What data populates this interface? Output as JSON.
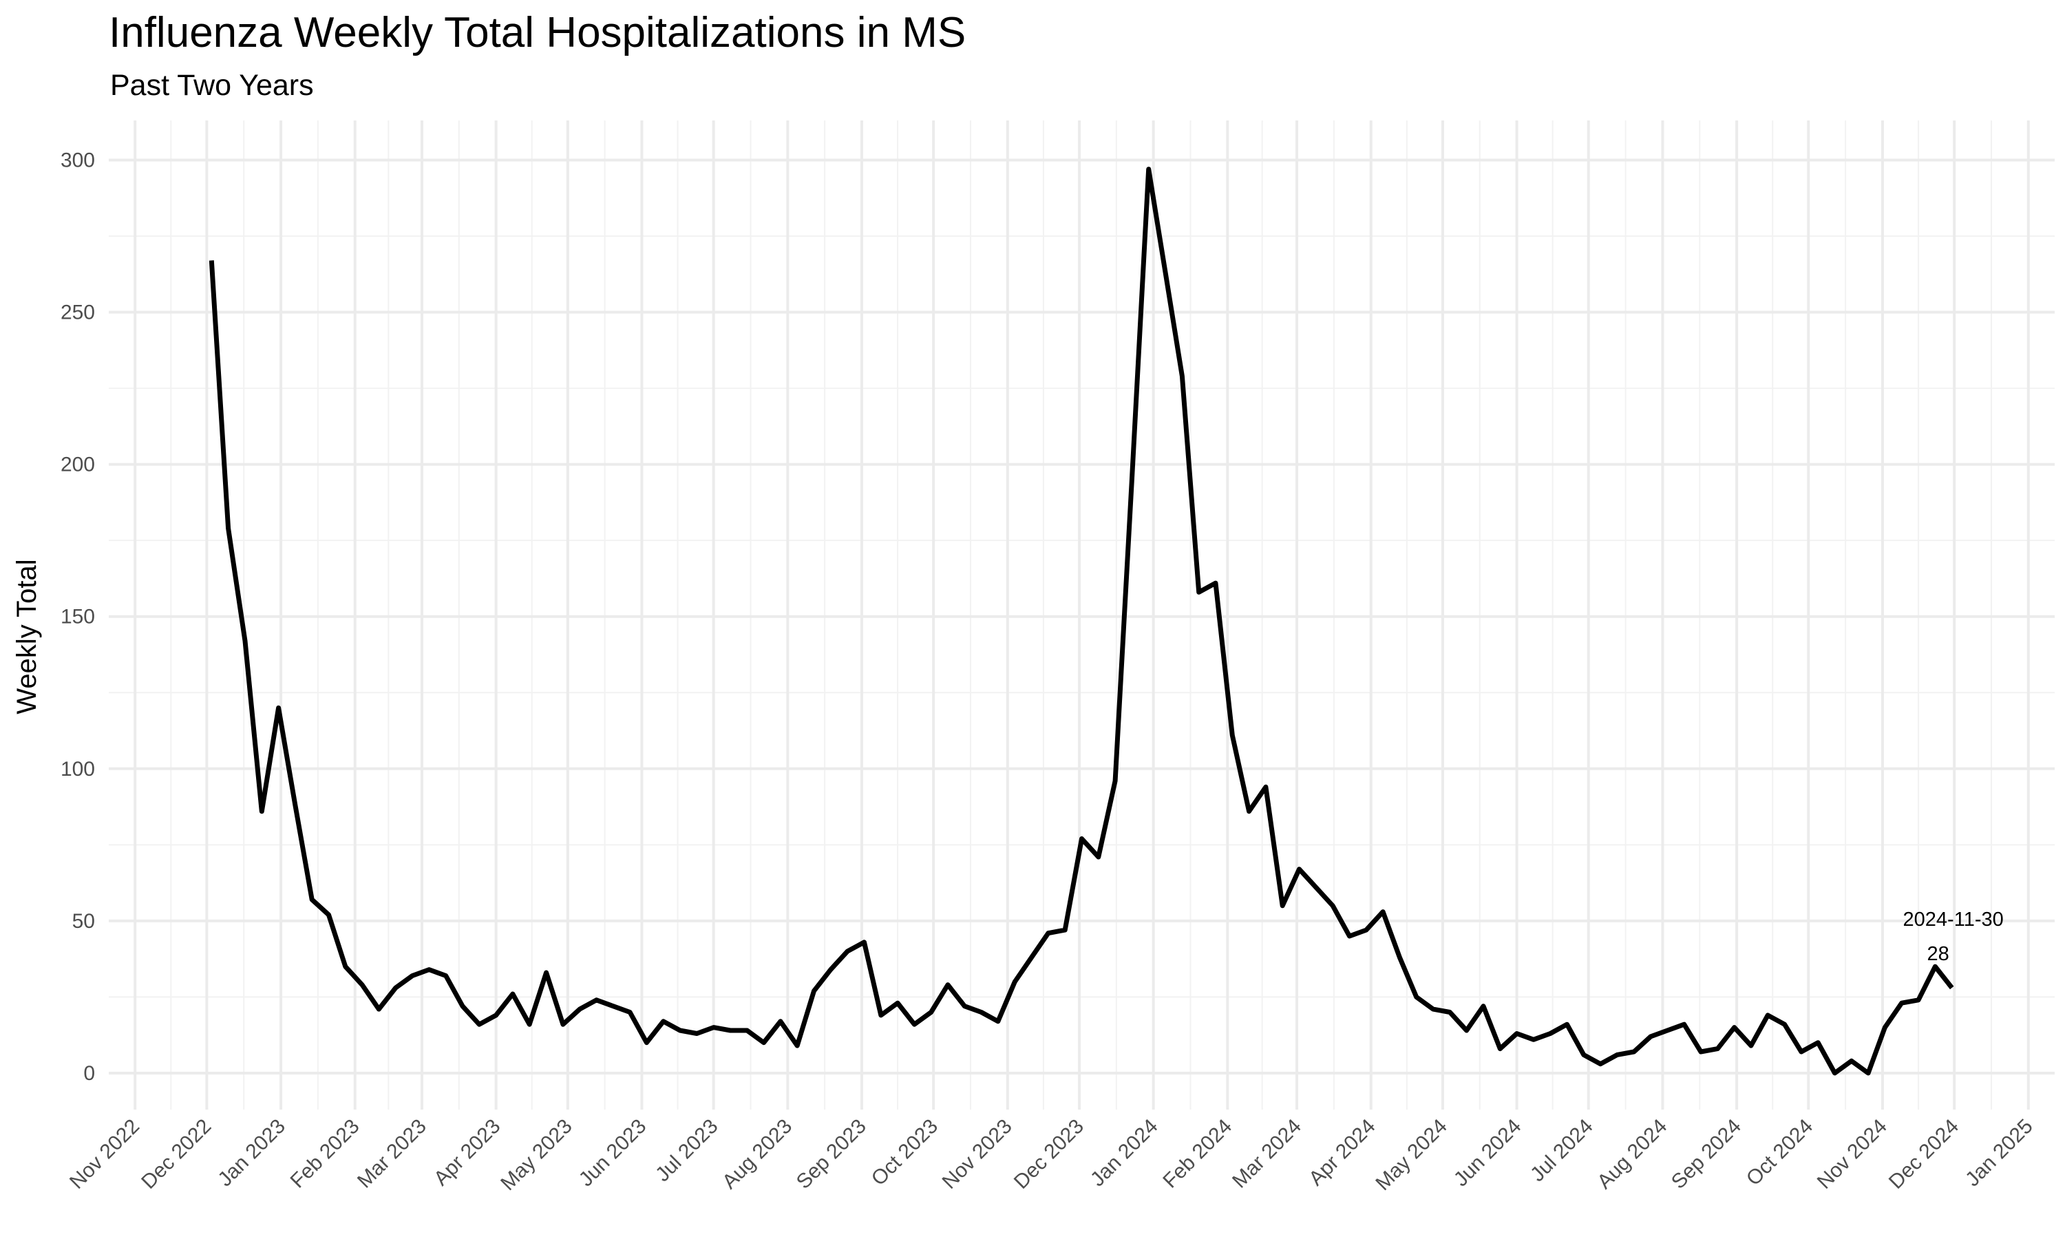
{
  "chart_data": {
    "type": "line",
    "title": "Influenza Weekly Total Hospitalizations in MS",
    "subtitle": "Past Two Years",
    "xlabel": "",
    "ylabel": "Weekly Total",
    "grid": true,
    "ylim": [
      -12,
      313
    ],
    "y_ticks": [
      0,
      50,
      100,
      150,
      200,
      250,
      300
    ],
    "y_tick_labels": [
      "0",
      "50",
      "100",
      "150",
      "200",
      "250",
      "300"
    ],
    "xlim": [
      "2022-10-21",
      "2025-01-12"
    ],
    "x_ticks": [
      "2022-11-01",
      "2022-12-01",
      "2023-01-01",
      "2023-02-01",
      "2023-03-01",
      "2023-04-01",
      "2023-05-01",
      "2023-06-01",
      "2023-07-01",
      "2023-08-01",
      "2023-09-01",
      "2023-10-01",
      "2023-11-01",
      "2023-12-01",
      "2024-01-01",
      "2024-02-01",
      "2024-03-01",
      "2024-04-01",
      "2024-05-01",
      "2024-06-01",
      "2024-07-01",
      "2024-08-01",
      "2024-09-01",
      "2024-10-01",
      "2024-11-01",
      "2024-12-01",
      "2025-01-01"
    ],
    "x_tick_labels": [
      "Nov 2022",
      "Dec 2022",
      "Jan 2023",
      "Feb 2023",
      "Mar 2023",
      "Apr 2023",
      "May 2023",
      "Jun 2023",
      "Jul 2023",
      "Aug 2023",
      "Sep 2023",
      "Oct 2023",
      "Nov 2023",
      "Dec 2023",
      "Jan 2024",
      "Feb 2024",
      "Mar 2024",
      "Apr 2024",
      "May 2024",
      "Jun 2024",
      "Jul 2024",
      "Aug 2024",
      "Sep 2024",
      "Oct 2024",
      "Nov 2024",
      "Dec 2024",
      "Jan 2025"
    ],
    "series": [
      {
        "color": "#000000",
        "x": [
          "2022-12-03",
          "2022-12-10",
          "2022-12-17",
          "2022-12-24",
          "2022-12-31",
          "2023-01-07",
          "2023-01-14",
          "2023-01-21",
          "2023-01-28",
          "2023-02-04",
          "2023-02-11",
          "2023-02-18",
          "2023-02-25",
          "2023-03-04",
          "2023-03-11",
          "2023-03-18",
          "2023-03-25",
          "2023-04-01",
          "2023-04-08",
          "2023-04-15",
          "2023-04-22",
          "2023-04-29",
          "2023-05-06",
          "2023-05-13",
          "2023-05-20",
          "2023-05-27",
          "2023-06-03",
          "2023-06-10",
          "2023-06-17",
          "2023-06-24",
          "2023-07-01",
          "2023-07-08",
          "2023-07-15",
          "2023-07-22",
          "2023-07-29",
          "2023-08-05",
          "2023-08-12",
          "2023-08-19",
          "2023-08-26",
          "2023-09-02",
          "2023-09-09",
          "2023-09-16",
          "2023-09-23",
          "2023-09-30",
          "2023-10-07",
          "2023-10-14",
          "2023-10-21",
          "2023-10-28",
          "2023-11-04",
          "2023-11-11",
          "2023-11-18",
          "2023-11-25",
          "2023-12-02",
          "2023-12-09",
          "2023-12-16",
          "2023-12-23",
          "2023-12-30",
          "2024-01-06",
          "2024-01-13",
          "2024-01-20",
          "2024-01-27",
          "2024-02-03",
          "2024-02-10",
          "2024-02-17",
          "2024-02-24",
          "2024-03-02",
          "2024-03-09",
          "2024-03-16",
          "2024-03-23",
          "2024-03-30",
          "2024-04-06",
          "2024-04-13",
          "2024-04-20",
          "2024-04-27",
          "2024-05-04",
          "2024-05-11",
          "2024-05-18",
          "2024-05-25",
          "2024-06-01",
          "2024-06-08",
          "2024-06-15",
          "2024-06-22",
          "2024-06-29",
          "2024-07-06",
          "2024-07-13",
          "2024-07-20",
          "2024-07-27",
          "2024-08-03",
          "2024-08-10",
          "2024-08-17",
          "2024-08-24",
          "2024-08-31",
          "2024-09-07",
          "2024-09-14",
          "2024-09-21",
          "2024-09-28",
          "2024-10-05",
          "2024-10-12",
          "2024-10-19",
          "2024-10-26",
          "2024-11-02",
          "2024-11-09",
          "2024-11-16",
          "2024-11-23",
          "2024-11-30"
        ],
        "y": [
          267,
          179,
          142,
          86,
          120,
          88,
          57,
          52,
          35,
          29,
          21,
          28,
          32,
          34,
          32,
          22,
          16,
          19,
          26,
          16,
          33,
          16,
          21,
          24,
          22,
          20,
          10,
          17,
          14,
          13,
          15,
          14,
          14,
          10,
          17,
          9,
          27,
          34,
          40,
          43,
          19,
          23,
          16,
          20,
          29,
          22,
          20,
          17,
          30,
          38,
          46,
          47,
          77,
          71,
          96,
          195,
          297,
          263,
          229,
          158,
          161,
          111,
          86,
          94,
          55,
          67,
          61,
          55,
          45,
          47,
          53,
          38,
          25,
          21,
          20,
          14,
          22,
          8,
          13,
          11,
          13,
          16,
          6,
          3,
          6,
          7,
          12,
          14,
          16,
          7,
          8,
          15,
          9,
          19,
          16,
          7,
          10,
          0,
          4,
          0,
          15,
          23,
          24,
          35,
          28
        ]
      }
    ],
    "annotations": [
      {
        "x": "2024-11-30",
        "y": 28,
        "date_text": "2024-11-30",
        "value_text": "28"
      }
    ]
  }
}
